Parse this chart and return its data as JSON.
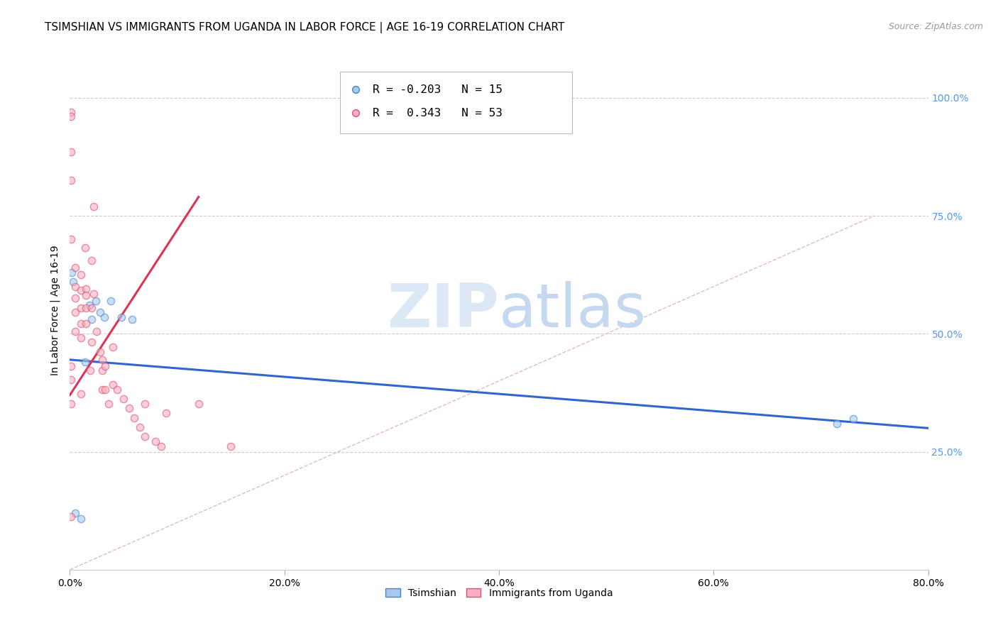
{
  "title": "TSIMSHIAN VS IMMIGRANTS FROM UGANDA IN LABOR FORCE | AGE 16-19 CORRELATION CHART",
  "source": "Source: ZipAtlas.com",
  "ylabel": "In Labor Force | Age 16-19",
  "x_ticklabels": [
    "0.0%",
    "20.0%",
    "40.0%",
    "60.0%",
    "80.0%"
  ],
  "y_ticklabels_right": [
    "25.0%",
    "50.0%",
    "75.0%",
    "100.0%"
  ],
  "x_ticks": [
    0.0,
    0.2,
    0.4,
    0.6,
    0.8
  ],
  "y_ticks": [
    0.25,
    0.5,
    0.75,
    1.0
  ],
  "x_min": 0.0,
  "x_max": 0.8,
  "y_min": 0.0,
  "y_max": 1.1,
  "blue_fill": "#a8c8f0",
  "blue_edge": "#4488cc",
  "pink_fill": "#f8b0c0",
  "pink_edge": "#e05070",
  "blue_line_color": "#3366cc",
  "pink_line_color": "#dd3355",
  "diag_line_color": "#e8b8c8",
  "grid_color": "#cccccc",
  "legend_r_blue": "-0.203",
  "legend_n_blue": "15",
  "legend_r_pink": "0.343",
  "legend_n_pink": "53",
  "legend_label_blue": "Tsimshian",
  "legend_label_pink": "Immigrants from Uganda",
  "blue_scatter_x": [
    0.002,
    0.003,
    0.018,
    0.02,
    0.024,
    0.028,
    0.032,
    0.038,
    0.048,
    0.058,
    0.715,
    0.73,
    0.005,
    0.01,
    0.014
  ],
  "blue_scatter_y": [
    0.63,
    0.61,
    0.56,
    0.53,
    0.57,
    0.545,
    0.535,
    0.57,
    0.535,
    0.53,
    0.31,
    0.32,
    0.12,
    0.108,
    0.44
  ],
  "pink_scatter_x": [
    0.001,
    0.001,
    0.001,
    0.001,
    0.001,
    0.005,
    0.005,
    0.005,
    0.005,
    0.005,
    0.01,
    0.01,
    0.01,
    0.01,
    0.01,
    0.015,
    0.015,
    0.015,
    0.015,
    0.02,
    0.02,
    0.02,
    0.022,
    0.022,
    0.025,
    0.028,
    0.03,
    0.03,
    0.03,
    0.033,
    0.033,
    0.036,
    0.04,
    0.04,
    0.044,
    0.05,
    0.055,
    0.06,
    0.065,
    0.07,
    0.08,
    0.085,
    0.09,
    0.12,
    0.15,
    0.001,
    0.001,
    0.001,
    0.01,
    0.014,
    0.019,
    0.07,
    0.001
  ],
  "pink_scatter_y": [
    0.97,
    0.96,
    0.885,
    0.825,
    0.7,
    0.64,
    0.6,
    0.575,
    0.545,
    0.505,
    0.625,
    0.592,
    0.555,
    0.522,
    0.492,
    0.595,
    0.582,
    0.555,
    0.522,
    0.655,
    0.555,
    0.482,
    0.77,
    0.585,
    0.505,
    0.462,
    0.445,
    0.422,
    0.382,
    0.432,
    0.382,
    0.352,
    0.472,
    0.392,
    0.382,
    0.362,
    0.342,
    0.322,
    0.302,
    0.282,
    0.272,
    0.262,
    0.332,
    0.352,
    0.262,
    0.432,
    0.402,
    0.352,
    0.372,
    0.682,
    0.422,
    0.352,
    0.112
  ],
  "blue_trendline_x": [
    0.0,
    0.8
  ],
  "blue_trendline_y": [
    0.445,
    0.3
  ],
  "pink_trendline_x": [
    0.0,
    0.12
  ],
  "pink_trendline_y": [
    0.37,
    0.79
  ],
  "diag_line_x": [
    0.0,
    0.75
  ],
  "diag_line_y": [
    0.0,
    0.75
  ],
  "title_fontsize": 11,
  "axis_label_fontsize": 10,
  "tick_fontsize": 10,
  "source_fontsize": 9,
  "scatter_size": 55,
  "scatter_alpha": 0.6,
  "scatter_lw": 1.0
}
